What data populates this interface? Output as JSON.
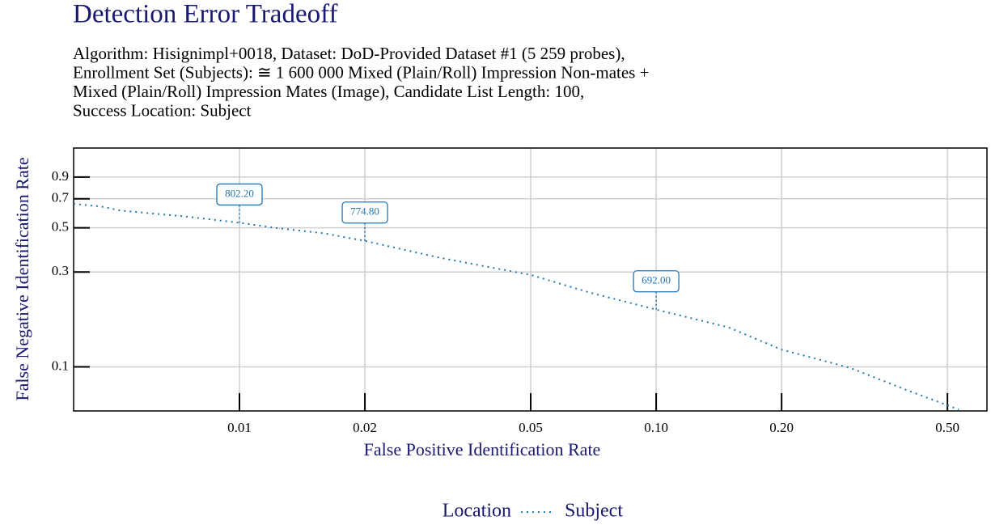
{
  "chart_data": {
    "type": "line",
    "title": "Detection Error Tradeoff",
    "subtitle": [
      "Algorithm: Hisignimpl+0018, Dataset: DoD-Provided Dataset #1 (5 259 probes),",
      "Enrollment Set (Subjects): ≅ 1 600 000 Mixed (Plain/Roll) Impression Non-mates +",
      "Mixed (Plain/Roll) Impression Mates (Image), Candidate List Length: 100,",
      "Success Location: Subject"
    ],
    "x_label": "False Positive Identification Rate",
    "y_label": "False Negative Identification Rate",
    "legend_title": "Location",
    "x": [
      0.004,
      0.00466,
      0.0052,
      0.00745,
      0.01,
      0.0122,
      0.0159,
      0.02,
      0.0298,
      0.0389,
      0.05,
      0.0694,
      0.1,
      0.149,
      0.2,
      0.291,
      0.398,
      0.532
    ],
    "series": [
      {
        "name": "Subject",
        "color": "#1f77b4",
        "values": [
          0.66,
          0.64,
          0.61,
          0.57,
          0.53,
          0.5,
          0.47,
          0.43,
          0.356,
          0.32,
          0.29,
          0.236,
          0.194,
          0.158,
          0.122,
          0.099,
          0.0766,
          0.061
        ]
      }
    ],
    "annotations": [
      {
        "text": "802.20",
        "x": 0.01,
        "y": 0.53
      },
      {
        "text": "774.80",
        "x": 0.02,
        "y": 0.43
      },
      {
        "text": "692.00",
        "x": 0.1,
        "y": 0.194
      }
    ],
    "xscale": "log",
    "yscale": "log",
    "xlim": [
      0.004,
      0.622
    ],
    "ylim": [
      0.06,
      1.26
    ],
    "xticks": [
      0.01,
      0.02,
      0.05,
      {
        "value": 0.1,
        "label": "0.10"
      },
      {
        "value": 0.2,
        "label": "0.20"
      },
      {
        "value": 0.5,
        "label": "0.50"
      }
    ],
    "yticks": [
      0.9,
      0.7,
      0.5,
      0.3,
      0.1
    ],
    "grid": true,
    "legend": "bottom"
  }
}
